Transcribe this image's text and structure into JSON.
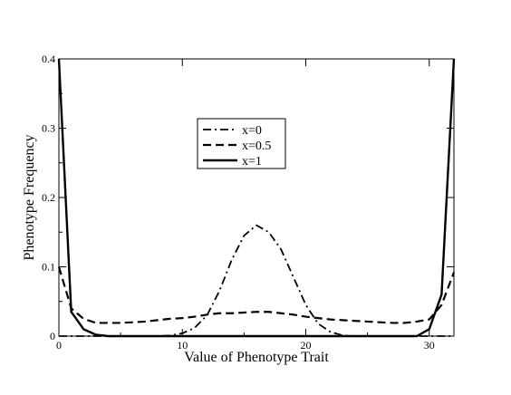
{
  "chart_data": {
    "type": "line",
    "title": "",
    "xlabel": "Value of Phenotype Trait",
    "ylabel": "Phenotype Frequency",
    "xlim": [
      0,
      32
    ],
    "ylim": [
      0,
      0.4
    ],
    "xticks": [
      0,
      10,
      20,
      30
    ],
    "yticks": [
      0,
      0.1,
      0.2,
      0.3,
      0.4
    ],
    "xtick_labels": [
      "0",
      "10",
      "20",
      "30"
    ],
    "ytick_labels": [
      "0",
      "0.1",
      "0.2",
      "0.3",
      "0.4"
    ],
    "grid": false,
    "legend_position": "upper-center",
    "x": [
      0,
      1,
      2,
      3,
      4,
      5,
      6,
      7,
      8,
      9,
      10,
      11,
      12,
      13,
      14,
      15,
      16,
      17,
      18,
      19,
      20,
      21,
      22,
      23,
      24,
      25,
      26,
      27,
      28,
      29,
      30,
      31,
      32
    ],
    "series": [
      {
        "name": "x=0",
        "style": "dash-dot",
        "values": [
          0,
          0,
          0,
          0,
          0,
          0,
          0,
          0,
          0,
          0.001,
          0.004,
          0.012,
          0.03,
          0.065,
          0.11,
          0.145,
          0.16,
          0.15,
          0.125,
          0.085,
          0.045,
          0.018,
          0.006,
          0.001,
          0,
          0,
          0,
          0,
          0,
          0,
          0,
          0,
          0
        ]
      },
      {
        "name": "x=0.5",
        "style": "dashed",
        "values": [
          0.1,
          0.04,
          0.025,
          0.019,
          0.019,
          0.019,
          0.02,
          0.021,
          0.023,
          0.025,
          0.026,
          0.028,
          0.031,
          0.033,
          0.033,
          0.034,
          0.035,
          0.035,
          0.033,
          0.031,
          0.028,
          0.026,
          0.024,
          0.023,
          0.022,
          0.021,
          0.02,
          0.019,
          0.019,
          0.021,
          0.024,
          0.045,
          0.092
        ]
      },
      {
        "name": "x=1",
        "style": "solid",
        "values": [
          0.4,
          0.035,
          0.01,
          0.002,
          0,
          0,
          0,
          0,
          0,
          0,
          0,
          0,
          0,
          0,
          0,
          0,
          0,
          0,
          0,
          0,
          0,
          0,
          0,
          0,
          0,
          0,
          0,
          0,
          0,
          0,
          0.01,
          0.06,
          0.4
        ]
      }
    ]
  }
}
